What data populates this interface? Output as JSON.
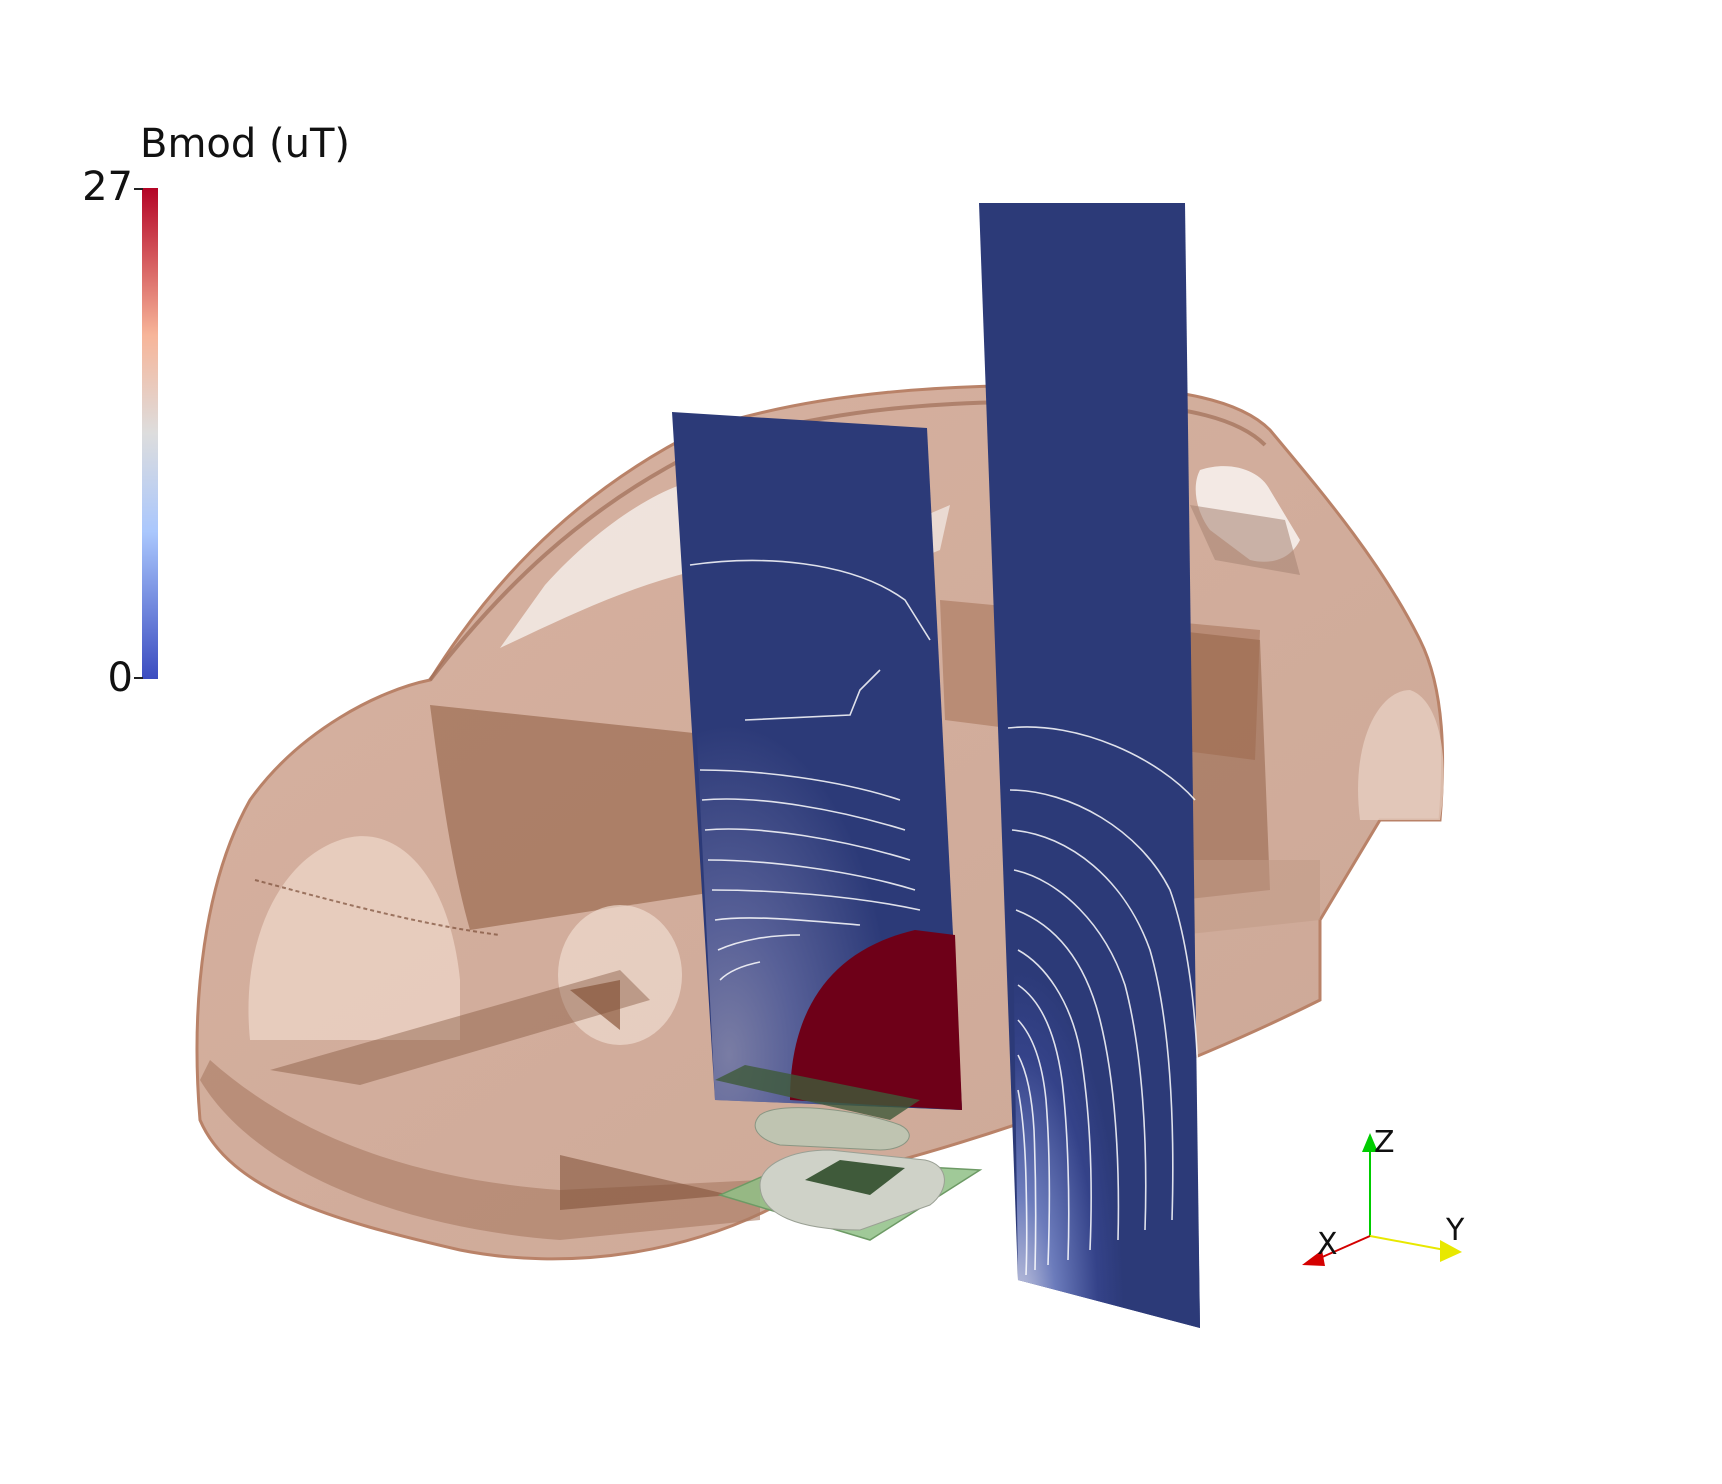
{
  "colorbar": {
    "title": "Bmod (uT)",
    "max_label": "27",
    "min_label": "0",
    "range": [
      0,
      27
    ],
    "colormap": "cool-to-warm",
    "colors": {
      "low": "#3b4cc0",
      "mid": "#dddddd",
      "high": "#b40426"
    }
  },
  "orientation_axes": {
    "x_label": "X",
    "y_label": "Y",
    "z_label": "Z",
    "x_color": "#d40000",
    "y_color": "#e8e800",
    "z_color": "#00cc00"
  },
  "scene": {
    "car_body_color": "#c08a70",
    "slice_background_color": "#2c3a78",
    "hot_region_color": "#6e0018",
    "coil_pad_color": "#bcc7b4",
    "coil_center_color": "#3f5a3a",
    "contour_line_color": "#ffffff"
  }
}
